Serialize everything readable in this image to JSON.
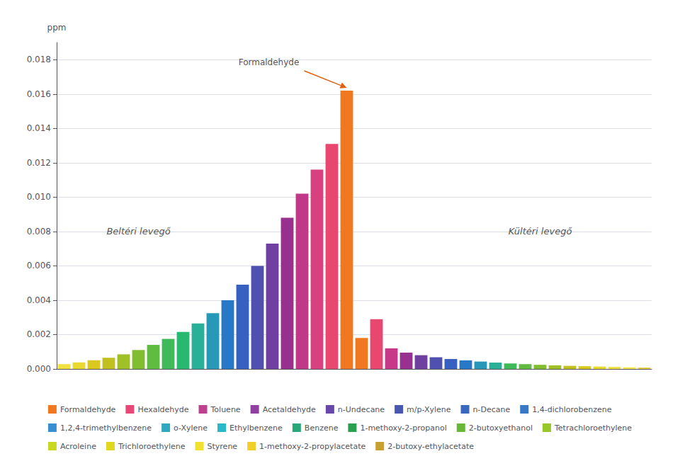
{
  "chart_data": {
    "type": "bar",
    "ylabel": "ppm",
    "categories": [
      null,
      null,
      null,
      null,
      null,
      null,
      null,
      null,
      null,
      null,
      null,
      null,
      null,
      null,
      null,
      null,
      null,
      null,
      null,
      null,
      null,
      null,
      null,
      null,
      null,
      null,
      null,
      null,
      null,
      null,
      null,
      null,
      null,
      null,
      null,
      null,
      null,
      null,
      null,
      null
    ],
    "values": [
      0.00028,
      0.00038,
      0.0005,
      0.00065,
      0.00085,
      0.0011,
      0.0014,
      0.00175,
      0.00215,
      0.00265,
      0.00325,
      0.004,
      0.0049,
      0.006,
      0.0073,
      0.0088,
      0.0102,
      0.0116,
      0.0131,
      0.0162,
      0.0018,
      0.0029,
      0.0012,
      0.00095,
      0.0008,
      0.00068,
      0.00058,
      0.0005,
      0.00043,
      0.00037,
      0.00032,
      0.00028,
      0.00024,
      0.00021,
      0.00018,
      0.00016,
      0.00014,
      0.00012,
      0.0001,
      8e-05
    ],
    "colors": [
      "#F0E040",
      "#E8D830",
      "#D8C820",
      "#C0C020",
      "#A0C028",
      "#80BE30",
      "#60BC40",
      "#40BA58",
      "#28B870",
      "#28B098",
      "#2898B8",
      "#2878C8",
      "#3860C0",
      "#5050B0",
      "#7040A0",
      "#983090",
      "#C03888",
      "#D84080",
      "#E84870",
      "#F07820",
      "#F07820",
      "#E84870",
      "#C83888",
      "#983090",
      "#7040A0",
      "#5050B0",
      "#3860C0",
      "#2878C8",
      "#2898B8",
      "#28B098",
      "#40BA58",
      "#60BC40",
      "#80BE30",
      "#A0C028",
      "#C0C020",
      "#D8C820",
      "#E8D830",
      "#F0E040",
      "#F8E850",
      "#E8D040"
    ],
    "ylim": [
      0,
      0.019
    ],
    "yticks": [
      {
        "value": 0,
        "label": "0.000"
      },
      0.002,
      0.004,
      0.006,
      0.008,
      {
        "value": 0.01,
        "label": "0.010"
      },
      0.012,
      0.014,
      0.016,
      0.018
    ],
    "grid": true,
    "tick_labels": "y",
    "annotations": [
      {
        "text": "Beltéri levegő",
        "category": 5,
        "y": 0.008
      },
      {
        "text": "Kültéri levegő",
        "category": 32,
        "y": 0.008
      },
      {
        "text": "Formaldehyde",
        "category": 19,
        "y": 0.0162
      }
    ],
    "legend": "bottom",
    "legend_entries": [
      {
        "name": "Formaldehyde",
        "color": "#F07820"
      },
      {
        "name": "Hexaldehyde",
        "color": "#E84878"
      },
      {
        "name": "Toluene",
        "color": "#C04090"
      },
      {
        "name": "Acetaldehyde",
        "color": "#9040A0"
      },
      {
        "name": "n-Undecane",
        "color": "#6848A8"
      },
      {
        "name": "m/p-Xylene",
        "color": "#4858B0"
      },
      {
        "name": "n-Decane",
        "color": "#3868C0"
      },
      {
        "name": "1,4-dichlorobenzene",
        "color": "#3878C8"
      },
      {
        "name": "1,2,4-trimethylbenzene",
        "color": "#3890D0"
      },
      {
        "name": "o-Xylene",
        "color": "#30A8C0"
      },
      {
        "name": "Ethylbenzene",
        "color": "#28B8C8"
      },
      {
        "name": "Benzene",
        "color": "#28A878"
      },
      {
        "name": "1-methoxy-2-propanol",
        "color": "#28A050"
      },
      {
        "name": "2-butoxyethanol",
        "color": "#68B838"
      },
      {
        "name": "Tetrachloroethylene",
        "color": "#98C828"
      },
      {
        "name": "Acroleine",
        "color": "#C8D820"
      },
      {
        "name": "Trichloroethylene",
        "color": "#E0D820"
      },
      {
        "name": "Styrene",
        "color": "#F0E030"
      },
      {
        "name": "1-methoxy-2-propylacetate",
        "color": "#F0D028"
      },
      {
        "name": "2-butoxy-ethylacetate",
        "color": "#C8A030"
      }
    ]
  }
}
